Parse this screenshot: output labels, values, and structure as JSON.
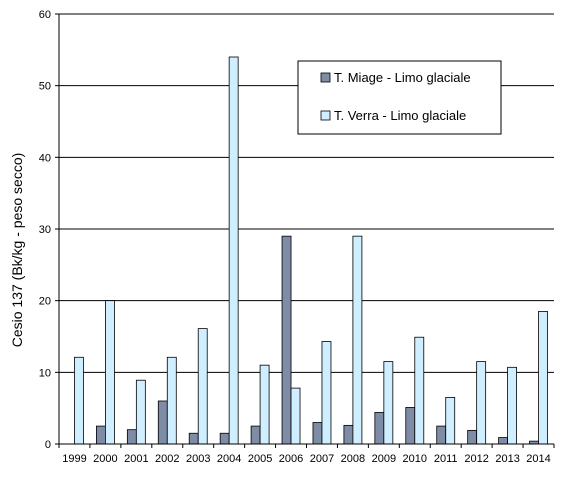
{
  "chart_data": {
    "type": "bar",
    "ylabel": "Cesio 137 (Bk/kg - peso secco)",
    "xlabel": "",
    "ylim": [
      0,
      60
    ],
    "yticks": [
      0,
      10,
      20,
      30,
      40,
      50,
      60
    ],
    "grid": true,
    "legend_position": "top-right",
    "categories": [
      "1999",
      "2000",
      "2001",
      "2002",
      "2003",
      "2004",
      "2005",
      "2006",
      "2007",
      "2008",
      "2009",
      "2010",
      "2011",
      "2012",
      "2013",
      "2014"
    ],
    "series": [
      {
        "name": "T. Miage - Limo glaciale",
        "color": "#7f8ca6",
        "values": [
          0,
          2.5,
          2,
          6,
          1.5,
          1.5,
          2.5,
          29,
          3,
          2.6,
          4.4,
          5.1,
          2.5,
          1.9,
          0.9,
          0.4
        ]
      },
      {
        "name": "T. Verra - Limo glaciale",
        "color": "#cfeeff",
        "values": [
          12.1,
          20,
          8.9,
          12.1,
          16.1,
          54,
          11,
          7.8,
          14.3,
          29,
          11.5,
          14.9,
          6.5,
          11.5,
          10.7,
          18.5
        ]
      }
    ]
  }
}
